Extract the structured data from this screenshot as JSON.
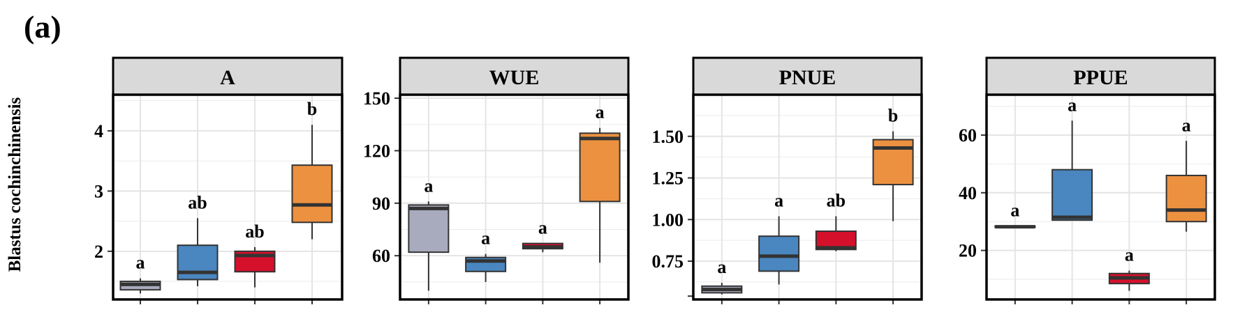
{
  "figure": {
    "panel_label": "(a)",
    "row_label": "Blastus cochinchinensis"
  },
  "colors": {
    "groups": [
      "#a8abbd",
      "#4a86bf",
      "#d5102b",
      "#ec9140"
    ],
    "strip_bg": "#d9d9d9",
    "grid": "#ebebeb",
    "frame": "#000000"
  },
  "chart_data": [
    {
      "type": "box",
      "title": "A",
      "ylim": [
        1.2,
        4.6
      ],
      "yticks": [
        2,
        3,
        4
      ],
      "ytick_labels": [
        "2",
        "3",
        "4"
      ],
      "boxes": [
        {
          "q1": 1.36,
          "median": 1.45,
          "q3": 1.5,
          "whisker_low": 1.3,
          "whisker_high": 1.55,
          "letter": "a"
        },
        {
          "q1": 1.53,
          "median": 1.65,
          "q3": 2.1,
          "whisker_low": 1.42,
          "whisker_high": 2.55,
          "letter": "ab"
        },
        {
          "q1": 1.66,
          "median": 1.93,
          "q3": 2.0,
          "whisker_low": 1.4,
          "whisker_high": 2.07,
          "letter": "ab"
        },
        {
          "q1": 2.48,
          "median": 2.77,
          "q3": 3.43,
          "whisker_low": 2.2,
          "whisker_high": 4.1,
          "letter": "b"
        }
      ]
    },
    {
      "type": "box",
      "title": "WUE",
      "ylim": [
        35,
        152
      ],
      "yticks": [
        60,
        90,
        120,
        150
      ],
      "ytick_labels": [
        "60",
        "90",
        "120",
        "150"
      ],
      "boxes": [
        {
          "q1": 62,
          "median": 87,
          "q3": 89,
          "whisker_low": 40,
          "whisker_high": 91,
          "letter": "a"
        },
        {
          "q1": 51,
          "median": 57,
          "q3": 59,
          "whisker_low": 45,
          "whisker_high": 61,
          "letter": "a"
        },
        {
          "q1": 64,
          "median": 65,
          "q3": 67,
          "whisker_low": 62,
          "whisker_high": 67,
          "letter": "a"
        },
        {
          "q1": 91,
          "median": 127,
          "q3": 130,
          "whisker_low": 56,
          "whisker_high": 133,
          "letter": "a"
        }
      ]
    },
    {
      "type": "box",
      "title": "PNUE",
      "ylim": [
        0.52,
        1.75
      ],
      "yticks": [
        0.75,
        1.0,
        1.25,
        1.5
      ],
      "ytick_labels": [
        "0.75",
        "1.00",
        "1.25",
        "1.50"
      ],
      "extra_tick": 0.54,
      "boxes": [
        {
          "q1": 0.56,
          "median": 0.58,
          "q3": 0.6,
          "whisker_low": 0.55,
          "whisker_high": 0.62,
          "letter": "a"
        },
        {
          "q1": 0.69,
          "median": 0.78,
          "q3": 0.9,
          "whisker_low": 0.61,
          "whisker_high": 1.02,
          "letter": "a"
        },
        {
          "q1": 0.82,
          "median": 0.83,
          "q3": 0.93,
          "whisker_low": 0.81,
          "whisker_high": 1.02,
          "letter": "ab"
        },
        {
          "q1": 1.21,
          "median": 1.43,
          "q3": 1.48,
          "whisker_low": 0.99,
          "whisker_high": 1.53,
          "letter": "b"
        }
      ]
    },
    {
      "type": "box",
      "title": "PPUE",
      "ylim": [
        3,
        74
      ],
      "yticks": [
        20,
        40,
        60
      ],
      "ytick_labels": [
        "20",
        "40",
        "60"
      ],
      "boxes": [
        {
          "q1": 28,
          "median": 28.2,
          "q3": 28.5,
          "whisker_low": 28,
          "whisker_high": 28.5,
          "letter": "a"
        },
        {
          "q1": 30.5,
          "median": 31.5,
          "q3": 48,
          "whisker_low": 30.5,
          "whisker_high": 65,
          "letter": "a"
        },
        {
          "q1": 8.5,
          "median": 10.5,
          "q3": 12,
          "whisker_low": 6,
          "whisker_high": 13,
          "letter": "a"
        },
        {
          "q1": 30,
          "median": 34,
          "q3": 46,
          "whisker_low": 26.5,
          "whisker_high": 58,
          "letter": "a"
        }
      ]
    }
  ]
}
